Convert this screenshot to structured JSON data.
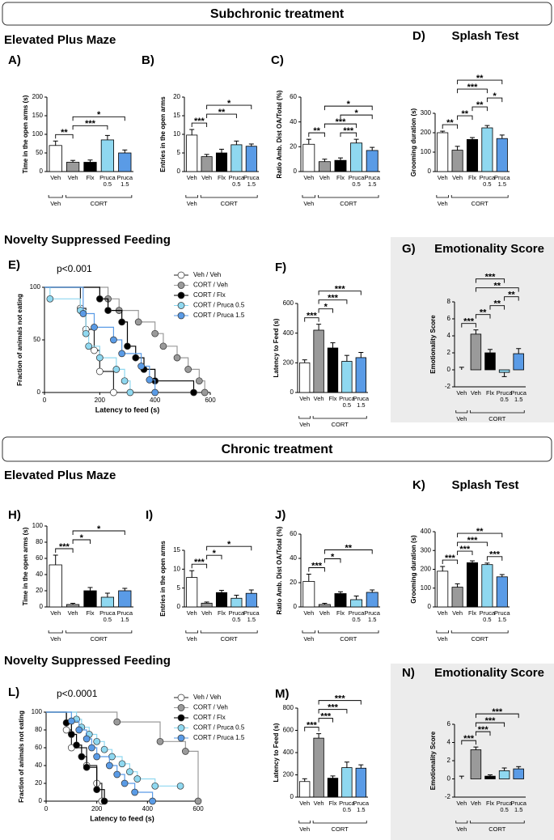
{
  "sections": [
    {
      "title": "Subchronic treatment",
      "headings": [
        "Elevated Plus Maze",
        "Novelty Suppressed Feeding"
      ]
    },
    {
      "title": "Chronic treatment",
      "headings": [
        "Elevated Plus Maze",
        "Novelty Suppressed Feeding"
      ]
    }
  ],
  "chart_data": [
    {
      "type": "bar",
      "panel": "A)",
      "ylabel": "Time in the open arms (s)",
      "categories": [
        "Veh",
        "Veh",
        "Flx",
        "Pruca 0.5",
        "Pruca 1.5"
      ],
      "group_labels": [
        "Veh",
        "CORT"
      ],
      "values": [
        70,
        25,
        25,
        85,
        50
      ],
      "errors": [
        12,
        5,
        6,
        12,
        8
      ],
      "colors": [
        "#ffffff",
        "#9a9a9a",
        "#000000",
        "#8fd8f0",
        "#5a9be6"
      ],
      "ylim": [
        0,
        200
      ],
      "yticks": [
        0,
        50,
        100,
        150,
        200
      ],
      "significance": [
        {
          "from": 0,
          "to": 1,
          "label": "**"
        },
        {
          "from": 1,
          "to": 3,
          "label": "***"
        },
        {
          "from": 1,
          "to": 4,
          "label": "*"
        }
      ]
    },
    {
      "type": "bar",
      "panel": "B)",
      "ylabel": "Entries in the open arms",
      "categories": [
        "Veh",
        "Veh",
        "Flx",
        "Pruca 0.5",
        "Pruca 1.5"
      ],
      "group_labels": [
        "Veh",
        "CORT"
      ],
      "values": [
        9.8,
        4,
        5,
        7.2,
        6.8
      ],
      "errors": [
        1.5,
        0.6,
        1,
        1,
        0.6
      ],
      "colors": [
        "#ffffff",
        "#9a9a9a",
        "#000000",
        "#8fd8f0",
        "#5a9be6"
      ],
      "ylim": [
        0,
        20
      ],
      "yticks": [
        0,
        5,
        10,
        15,
        20
      ],
      "significance": [
        {
          "from": 0,
          "to": 1,
          "label": "***"
        },
        {
          "from": 1,
          "to": 3,
          "label": "**"
        },
        {
          "from": 1,
          "to": 4,
          "label": "*"
        }
      ]
    },
    {
      "type": "bar",
      "panel": "C)",
      "ylabel": "Ratio Amb. Dist OA/Total (%)",
      "categories": [
        "Veh",
        "Veh",
        "Flx",
        "Pruca 0.5",
        "Pruca 1.5"
      ],
      "group_labels": [
        "Veh",
        "CORT"
      ],
      "values": [
        22,
        8,
        9,
        23,
        17
      ],
      "errors": [
        4,
        2,
        2,
        3,
        2.5
      ],
      "colors": [
        "#ffffff",
        "#9a9a9a",
        "#000000",
        "#8fd8f0",
        "#5a9be6"
      ],
      "ylim": [
        0,
        60
      ],
      "yticks": [
        0,
        20,
        40,
        60
      ],
      "significance": [
        {
          "from": 0,
          "to": 1,
          "label": "**"
        },
        {
          "from": 2,
          "to": 3,
          "label": "***"
        },
        {
          "from": 1,
          "to": 3,
          "label": "***"
        },
        {
          "from": 2,
          "to": 4,
          "label": "*"
        },
        {
          "from": 1,
          "to": 4,
          "label": "*"
        }
      ]
    },
    {
      "type": "bar",
      "panel": "D)",
      "title": "Splash Test",
      "ylabel": "Grooming duration  (s)",
      "categories": [
        "Veh",
        "Veh",
        "Flx",
        "Pruca 0.5",
        "Pruca 1.5"
      ],
      "group_labels": [
        "Veh",
        "CORT"
      ],
      "values": [
        200,
        110,
        165,
        225,
        170
      ],
      "errors": [
        8,
        20,
        10,
        12,
        18
      ],
      "colors": [
        "#ffffff",
        "#9a9a9a",
        "#000000",
        "#8fd8f0",
        "#5a9be6"
      ],
      "ylim": [
        0,
        300
      ],
      "yticks": [
        0,
        100,
        200,
        300
      ],
      "significance": [
        {
          "from": 0,
          "to": 1,
          "label": "**"
        },
        {
          "from": 1,
          "to": 2,
          "label": "**"
        },
        {
          "from": 2,
          "to": 3,
          "label": "**"
        },
        {
          "from": 3,
          "to": 4,
          "label": "*"
        },
        {
          "from": 1,
          "to": 3,
          "label": "***"
        },
        {
          "from": 1,
          "to": 4,
          "label": "**"
        }
      ]
    },
    {
      "type": "survival",
      "panel": "E)",
      "annotation": "p<0.001",
      "xlabel": "Latency to feed (s)",
      "ylabel": "Fraction of animals not eating",
      "xlim": [
        0,
        600
      ],
      "xticks": [
        0,
        200,
        400,
        600
      ],
      "ylim": [
        0,
        100
      ],
      "yticks": [
        0,
        50,
        100
      ],
      "series": [
        {
          "name": "Veh / Veh",
          "color": "#ffffff",
          "x": [
            0,
            130,
            150,
            180,
            200,
            250
          ],
          "y": [
            100,
            80,
            60,
            40,
            20,
            0
          ]
        },
        {
          "name": "CORT / Veh",
          "color": "#9a9a9a",
          "x": [
            0,
            230,
            270,
            340,
            400,
            430,
            480,
            520,
            560,
            580
          ],
          "y": [
            100,
            89,
            78,
            67,
            56,
            44,
            33,
            22,
            11,
            0
          ]
        },
        {
          "name": "CORT / Flx",
          "color": "#000000",
          "x": [
            0,
            200,
            230,
            280,
            300,
            330,
            360,
            400,
            540
          ],
          "y": [
            100,
            89,
            78,
            67,
            44,
            33,
            22,
            11,
            0
          ]
        },
        {
          "name": "CORT / Pruca 0.5",
          "color": "#8fd8f0",
          "x": [
            0,
            20,
            130,
            150,
            160,
            200,
            260,
            290,
            310
          ],
          "y": [
            100,
            89,
            78,
            56,
            44,
            33,
            22,
            11,
            0
          ]
        },
        {
          "name": "CORT / Pruca 1.5",
          "color": "#5a9be6",
          "x": [
            0,
            140,
            180,
            250,
            280,
            350,
            380,
            400
          ],
          "y": [
            100,
            75,
            62,
            50,
            37,
            25,
            12,
            0
          ]
        }
      ]
    },
    {
      "type": "bar",
      "panel": "F)",
      "ylabel": "Latency to Feed (s)",
      "categories": [
        "Veh",
        "Veh",
        "Flx",
        "Pruca 0.5",
        "Pruca 1.5"
      ],
      "group_labels": [
        "Veh",
        "CORT"
      ],
      "values": [
        200,
        420,
        300,
        210,
        235
      ],
      "errors": [
        20,
        40,
        35,
        40,
        35
      ],
      "colors": [
        "#ffffff",
        "#9a9a9a",
        "#000000",
        "#8fd8f0",
        "#5a9be6"
      ],
      "ylim": [
        0,
        600
      ],
      "yticks": [
        0,
        200,
        400,
        600
      ],
      "significance": [
        {
          "from": 0,
          "to": 1,
          "label": "***"
        },
        {
          "from": 1,
          "to": 2,
          "label": "*"
        },
        {
          "from": 1,
          "to": 3,
          "label": "***"
        },
        {
          "from": 1,
          "to": 4,
          "label": "***"
        }
      ]
    },
    {
      "type": "bar",
      "panel": "G)",
      "title": "Emotionality Score",
      "ylabel": "Emotionality Score",
      "boxed": true,
      "categories": [
        "Veh",
        "Veh",
        "Flx",
        "Pruca 0.5",
        "Pruca 1.5"
      ],
      "group_labels": [
        "Veh",
        "CORT"
      ],
      "values": [
        0,
        4.2,
        2,
        -0.3,
        1.9
      ],
      "errors": [
        0.3,
        0.5,
        0.4,
        0.5,
        0.6
      ],
      "colors": [
        "#ffffff",
        "#9a9a9a",
        "#000000",
        "#8fd8f0",
        "#5a9be6"
      ],
      "ylim": [
        -2,
        8
      ],
      "yticks": [
        -2,
        0,
        2,
        4,
        6,
        8
      ],
      "significance": [
        {
          "from": 0,
          "to": 1,
          "label": "***"
        },
        {
          "from": 1,
          "to": 2,
          "label": "**"
        },
        {
          "from": 2,
          "to": 3,
          "label": "**"
        },
        {
          "from": 3,
          "to": 4,
          "label": "**"
        },
        {
          "from": 1,
          "to": 4,
          "label": "**"
        },
        {
          "from": 1,
          "to": 3,
          "label": "***"
        }
      ]
    },
    {
      "type": "bar",
      "panel": "H)",
      "ylabel": "Time in the open arms (s)",
      "categories": [
        "Veh",
        "Veh",
        "Flx",
        "Pruca 0.5",
        "Pruca 1.5"
      ],
      "group_labels": [
        "Veh",
        "CORT"
      ],
      "values": [
        52,
        3,
        20,
        12,
        20
      ],
      "errors": [
        12,
        1.5,
        4,
        5,
        3
      ],
      "colors": [
        "#ffffff",
        "#9a9a9a",
        "#000000",
        "#8fd8f0",
        "#5a9be6"
      ],
      "ylim": [
        0,
        100
      ],
      "yticks": [
        0,
        20,
        40,
        60,
        80,
        100
      ],
      "significance": [
        {
          "from": 0,
          "to": 1,
          "label": "***"
        },
        {
          "from": 1,
          "to": 2,
          "label": "*"
        },
        {
          "from": 1,
          "to": 4,
          "label": "*"
        }
      ]
    },
    {
      "type": "bar",
      "panel": "I)",
      "ylabel": "Entries in the open arms",
      "categories": [
        "Veh",
        "Veh",
        "Flx",
        "Pruca 0.5",
        "Pruca 1.5"
      ],
      "group_labels": [
        "Veh",
        "CORT"
      ],
      "values": [
        7.8,
        1,
        3.8,
        2.3,
        3.6
      ],
      "errors": [
        1.8,
        0.3,
        0.6,
        0.8,
        0.9
      ],
      "colors": [
        "#ffffff",
        "#9a9a9a",
        "#000000",
        "#8fd8f0",
        "#5a9be6"
      ],
      "ylim": [
        0,
        15
      ],
      "yticks": [
        0,
        5,
        10,
        15
      ],
      "significance": [
        {
          "from": 0,
          "to": 1,
          "label": "***"
        },
        {
          "from": 1,
          "to": 2,
          "label": "*"
        },
        {
          "from": 1,
          "to": 4,
          "label": "*"
        }
      ]
    },
    {
      "type": "bar",
      "panel": "J)",
      "ylabel": "Ratio Amb. Dist OA/Total (%)",
      "categories": [
        "Veh",
        "Veh",
        "Flx",
        "Pruca 0.5",
        "Pruca 1.5"
      ],
      "group_labels": [
        "Veh",
        "CORT"
      ],
      "values": [
        21,
        2,
        11,
        6,
        12
      ],
      "errors": [
        6,
        1,
        1.5,
        3,
        2
      ],
      "colors": [
        "#ffffff",
        "#9a9a9a",
        "#000000",
        "#8fd8f0",
        "#5a9be6"
      ],
      "ylim": [
        0,
        60
      ],
      "yticks": [
        0,
        20,
        40,
        60
      ],
      "significance": [
        {
          "from": 0,
          "to": 1,
          "label": "***"
        },
        {
          "from": 1,
          "to": 2,
          "label": "*"
        },
        {
          "from": 1,
          "to": 4,
          "label": "**"
        }
      ]
    },
    {
      "type": "bar",
      "panel": "K)",
      "title": "Splash Test",
      "ylabel": "Grooming duration  (s)",
      "categories": [
        "Veh",
        "Veh",
        "Flx",
        "Pruca 0.5",
        "Pruca 1.5"
      ],
      "group_labels": [
        "Veh",
        "CORT"
      ],
      "values": [
        190,
        105,
        235,
        225,
        160
      ],
      "errors": [
        25,
        18,
        10,
        8,
        12
      ],
      "colors": [
        "#ffffff",
        "#9a9a9a",
        "#000000",
        "#8fd8f0",
        "#5a9be6"
      ],
      "ylim": [
        0,
        400
      ],
      "yticks": [
        0,
        100,
        200,
        300,
        400
      ],
      "significance": [
        {
          "from": 0,
          "to": 1,
          "label": "***"
        },
        {
          "from": 1,
          "to": 2,
          "label": "***"
        },
        {
          "from": 3,
          "to": 4,
          "label": "***"
        },
        {
          "from": 1,
          "to": 3,
          "label": "***"
        },
        {
          "from": 1,
          "to": 4,
          "label": "**"
        }
      ]
    },
    {
      "type": "survival",
      "panel": "L)",
      "annotation": "p<0.0001",
      "xlabel": "Latency to feed (s)",
      "ylabel": "Fraction of animals not eating",
      "xlim": [
        0,
        600
      ],
      "xticks": [
        0,
        200,
        400,
        600
      ],
      "ylim": [
        0,
        100
      ],
      "yticks": [
        0,
        20,
        40,
        60,
        80,
        100
      ],
      "series": [
        {
          "name": "Veh / Veh",
          "color": "#ffffff",
          "x": [
            0,
            80,
            100,
            160,
            200,
            220
          ],
          "y": [
            100,
            80,
            60,
            40,
            20,
            0
          ]
        },
        {
          "name": "CORT / Veh",
          "color": "#9a9a9a",
          "x": [
            0,
            280,
            450,
            550,
            600
          ],
          "y": [
            100,
            89,
            67,
            56,
            0
          ]
        },
        {
          "name": "CORT / Flx",
          "color": "#000000",
          "x": [
            0,
            80,
            100,
            120,
            140,
            160,
            200,
            230
          ],
          "y": [
            100,
            88,
            75,
            63,
            50,
            38,
            13,
            0
          ]
        },
        {
          "name": "CORT / Pruca 0.5",
          "color": "#8fd8f0",
          "x": [
            0,
            120,
            140,
            170,
            200,
            230,
            260,
            300,
            330,
            360,
            430,
            530
          ],
          "y": [
            100,
            92,
            83,
            75,
            67,
            58,
            50,
            42,
            33,
            25,
            17,
            17
          ]
        },
        {
          "name": "CORT / Pruca 1.5",
          "color": "#5a9be6",
          "x": [
            0,
            100,
            130,
            160,
            180,
            200,
            250,
            280,
            310,
            350,
            420
          ],
          "y": [
            100,
            90,
            80,
            70,
            60,
            50,
            40,
            30,
            20,
            10,
            0
          ]
        }
      ]
    },
    {
      "type": "bar",
      "panel": "M)",
      "ylabel": "Latency to Feed (s)",
      "categories": [
        "Veh",
        "Veh",
        "Flx",
        "Pruca 0.5",
        "Pruca 1.5"
      ],
      "group_labels": [
        "Veh",
        "CORT"
      ],
      "values": [
        140,
        530,
        170,
        265,
        260
      ],
      "errors": [
        25,
        40,
        20,
        50,
        30
      ],
      "colors": [
        "#ffffff",
        "#9a9a9a",
        "#000000",
        "#8fd8f0",
        "#5a9be6"
      ],
      "ylim": [
        0,
        800
      ],
      "yticks": [
        0,
        200,
        400,
        600,
        800
      ],
      "significance": [
        {
          "from": 0,
          "to": 1,
          "label": "***"
        },
        {
          "from": 1,
          "to": 2,
          "label": "***"
        },
        {
          "from": 1,
          "to": 3,
          "label": "***"
        },
        {
          "from": 1,
          "to": 4,
          "label": "***"
        }
      ]
    },
    {
      "type": "bar",
      "panel": "N)",
      "title": "Emotionality Score",
      "ylabel": "Emotionality Score",
      "boxed": true,
      "categories": [
        "Veh",
        "Veh",
        "Flx",
        "Pruca 0.5",
        "Pruca 1.5"
      ],
      "group_labels": [
        "Veh",
        "CORT"
      ],
      "values": [
        0,
        3.2,
        0.3,
        0.9,
        1.1
      ],
      "errors": [
        0.3,
        0.3,
        0.15,
        0.3,
        0.25
      ],
      "colors": [
        "#ffffff",
        "#9a9a9a",
        "#000000",
        "#8fd8f0",
        "#5a9be6"
      ],
      "ylim": [
        -2,
        6
      ],
      "yticks": [
        -2,
        0,
        2,
        4,
        6
      ],
      "significance": [
        {
          "from": 0,
          "to": 1,
          "label": "***"
        },
        {
          "from": 1,
          "to": 2,
          "label": "***"
        },
        {
          "from": 1,
          "to": 3,
          "label": "***"
        },
        {
          "from": 1,
          "to": 4,
          "label": "***"
        }
      ]
    }
  ]
}
